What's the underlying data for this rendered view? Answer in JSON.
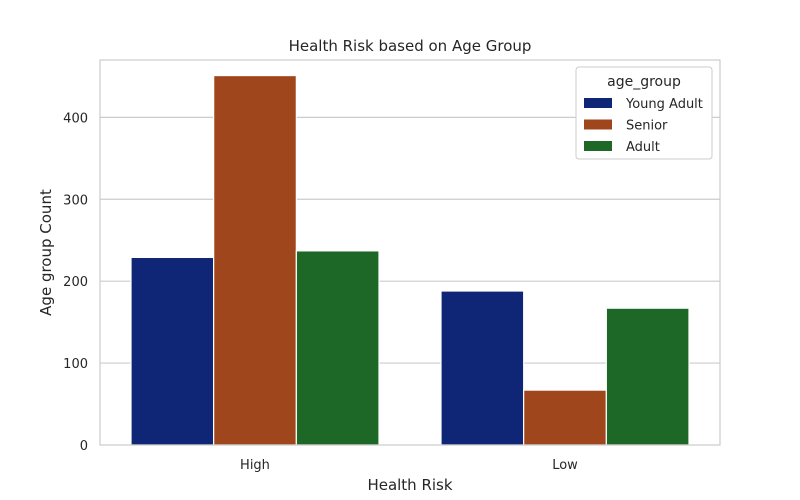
{
  "chart_data": {
    "type": "bar",
    "title": "Health Risk based on Age Group",
    "xlabel": "Health Risk",
    "ylabel": "Age group Count",
    "categories": [
      "High",
      "Low"
    ],
    "ylim": [
      0,
      470
    ],
    "yticks": [
      0,
      100,
      200,
      300,
      400
    ],
    "grid": true,
    "legend": {
      "title": "age_group",
      "placement": "top-right"
    },
    "series": [
      {
        "name": "Young Adult",
        "color": "#0f2575",
        "values": [
          229,
          188
        ]
      },
      {
        "name": "Senior",
        "color": "#a0461c",
        "values": [
          451,
          67
        ]
      },
      {
        "name": "Adult",
        "color": "#1d6727",
        "values": [
          237,
          167
        ]
      }
    ]
  }
}
